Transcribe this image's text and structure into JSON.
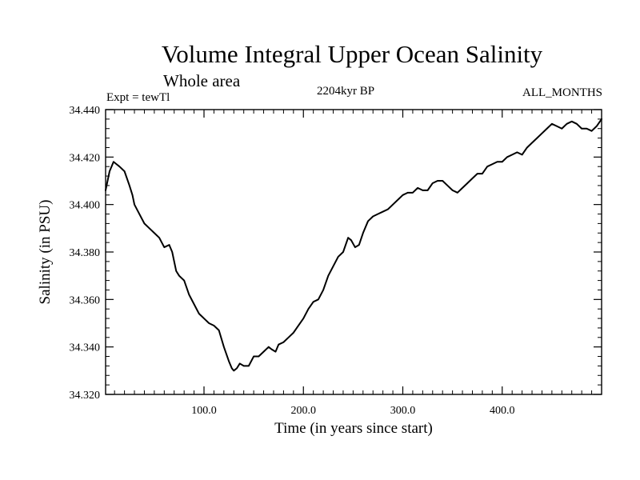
{
  "chart_data": {
    "type": "line",
    "title": "Volume Integral Upper Ocean Salinity",
    "subtitle": "Whole area",
    "experiment_label": "Expt = tewTl",
    "time_label": "2204kyr BP",
    "months_label": "ALL_MONTHS",
    "xlabel": "Time (in years since start)",
    "ylabel": "Salinity (in PSU)",
    "xlim": [
      1,
      500
    ],
    "ylim": [
      34.32,
      34.44
    ],
    "x_ticks": [
      {
        "value": 100,
        "label": "100.0"
      },
      {
        "value": 200,
        "label": "200.0"
      },
      {
        "value": 300,
        "label": "300.0"
      },
      {
        "value": 400,
        "label": "400.0"
      }
    ],
    "y_ticks": [
      {
        "value": 34.32,
        "label": "34.320"
      },
      {
        "value": 34.34,
        "label": "34.340"
      },
      {
        "value": 34.36,
        "label": "34.360"
      },
      {
        "value": 34.38,
        "label": "34.380"
      },
      {
        "value": 34.4,
        "label": "34.400"
      },
      {
        "value": 34.42,
        "label": "34.420"
      },
      {
        "value": 34.44,
        "label": "34.440"
      }
    ],
    "x_minor_step": 10,
    "y_minor_step": 0.004,
    "series": [
      {
        "name": "Salinity",
        "x": [
          1,
          5,
          9,
          12,
          15,
          20,
          25,
          28,
          30,
          35,
          40,
          45,
          50,
          55,
          60,
          65,
          68,
          70,
          72,
          75,
          80,
          85,
          90,
          95,
          100,
          105,
          110,
          115,
          120,
          125,
          128,
          130,
          133,
          136,
          140,
          145,
          150,
          155,
          160,
          165,
          168,
          172,
          175,
          180,
          185,
          190,
          195,
          200,
          205,
          210,
          215,
          220,
          225,
          230,
          235,
          240,
          245,
          248,
          252,
          256,
          260,
          265,
          270,
          275,
          280,
          285,
          290,
          295,
          300,
          305,
          310,
          315,
          320,
          325,
          330,
          335,
          340,
          345,
          350,
          355,
          360,
          365,
          370,
          375,
          380,
          385,
          390,
          395,
          400,
          405,
          410,
          415,
          420,
          425,
          430,
          435,
          440,
          445,
          450,
          455,
          460,
          465,
          470,
          475,
          480,
          485,
          490,
          495,
          500
        ],
        "values": [
          34.406,
          34.414,
          34.418,
          34.417,
          34.416,
          34.414,
          34.408,
          34.404,
          34.4,
          34.396,
          34.392,
          34.39,
          34.388,
          34.386,
          34.382,
          34.383,
          34.38,
          34.376,
          34.372,
          34.37,
          34.368,
          34.362,
          34.358,
          34.354,
          34.352,
          34.35,
          34.349,
          34.347,
          34.34,
          34.334,
          34.331,
          34.33,
          34.331,
          34.333,
          34.332,
          34.332,
          34.336,
          34.336,
          34.338,
          34.34,
          34.339,
          34.338,
          34.341,
          34.342,
          34.344,
          34.346,
          34.349,
          34.352,
          34.356,
          34.359,
          34.36,
          34.364,
          34.37,
          34.374,
          34.378,
          34.38,
          34.386,
          34.385,
          34.382,
          34.383,
          34.388,
          34.393,
          34.395,
          34.396,
          34.397,
          34.398,
          34.4,
          34.402,
          34.404,
          34.405,
          34.405,
          34.407,
          34.406,
          34.406,
          34.409,
          34.41,
          34.41,
          34.408,
          34.406,
          34.405,
          34.407,
          34.409,
          34.411,
          34.413,
          34.413,
          34.416,
          34.417,
          34.418,
          34.418,
          34.42,
          34.421,
          34.422,
          34.421,
          34.424,
          34.426,
          34.428,
          34.43,
          34.432,
          34.434,
          34.433,
          34.432,
          34.434,
          34.435,
          34.434,
          34.432,
          34.432,
          34.431,
          34.433,
          34.436
        ]
      }
    ]
  }
}
